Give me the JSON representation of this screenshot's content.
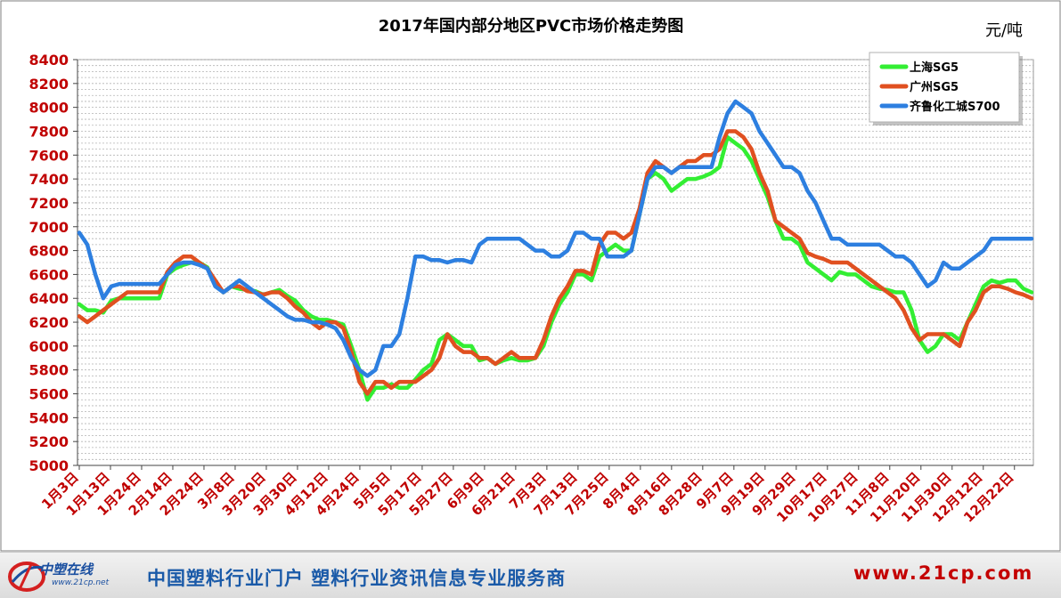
{
  "chart_data": {
    "type": "line",
    "title": "2017年国内部分地区PVC市场价格走势图",
    "unit_label": "元/吨",
    "ylim": [
      5000,
      8400
    ],
    "y_ticks": [
      5000,
      5200,
      5400,
      5600,
      5800,
      6000,
      6200,
      6400,
      6600,
      6800,
      7000,
      7200,
      7400,
      7600,
      7800,
      8000,
      8200,
      8400
    ],
    "grid": true,
    "legend_position": "top-right",
    "x_tick_labels": [
      "1月3日",
      "1月13日",
      "1月24日",
      "2月14日",
      "2月24日",
      "3月8日",
      "3月20日",
      "3月30日",
      "4月12日",
      "4月24日",
      "5月5日",
      "5月17日",
      "5月27日",
      "6月9日",
      "6月21日",
      "7月3日",
      "7月13日",
      "7月25日",
      "8月4日",
      "8月16日",
      "8月28日",
      "9月7日",
      "9月19日",
      "9月29日",
      "10月17日",
      "10月27日",
      "11月8日",
      "11月20日",
      "11月30日",
      "12月12日",
      "12月22日"
    ],
    "series": [
      {
        "name": "上海SG5",
        "color": "#33ee33",
        "values": [
          6350,
          6300,
          6300,
          6280,
          6380,
          6400,
          6400,
          6400,
          6400,
          6400,
          6400,
          6600,
          6650,
          6680,
          6700,
          6700,
          6660,
          6520,
          6450,
          6500,
          6480,
          6470,
          6460,
          6430,
          6450,
          6470,
          6420,
          6380,
          6300,
          6250,
          6220,
          6220,
          6200,
          6180,
          6000,
          5800,
          5550,
          5650,
          5650,
          5680,
          5650,
          5650,
          5720,
          5800,
          5850,
          6050,
          6100,
          6050,
          6000,
          6000,
          5880,
          5900,
          5850,
          5880,
          5900,
          5880,
          5880,
          5900,
          6000,
          6200,
          6350,
          6450,
          6600,
          6600,
          6550,
          6750,
          6800,
          6850,
          6800,
          6800,
          7100,
          7400,
          7450,
          7400,
          7300,
          7350,
          7400,
          7400,
          7420,
          7450,
          7500,
          7750,
          7700,
          7650,
          7550,
          7400,
          7250,
          7050,
          6900,
          6900,
          6850,
          6700,
          6650,
          6600,
          6550,
          6620,
          6600,
          6600,
          6550,
          6500,
          6480,
          6470,
          6450,
          6450,
          6300,
          6050,
          5950,
          6000,
          6100,
          6100,
          6050,
          6200,
          6350,
          6500,
          6550,
          6530,
          6550,
          6550,
          6480,
          6450
        ]
      },
      {
        "name": "广州SG5",
        "color": "#e05020",
        "values": [
          6250,
          6200,
          6250,
          6300,
          6350,
          6400,
          6450,
          6450,
          6450,
          6450,
          6450,
          6620,
          6700,
          6750,
          6750,
          6700,
          6650,
          6550,
          6450,
          6500,
          6500,
          6460,
          6450,
          6430,
          6450,
          6450,
          6400,
          6330,
          6280,
          6200,
          6150,
          6200,
          6200,
          6150,
          5950,
          5700,
          5600,
          5700,
          5700,
          5650,
          5700,
          5700,
          5700,
          5750,
          5800,
          5900,
          6100,
          6000,
          5950,
          5950,
          5900,
          5900,
          5850,
          5900,
          5950,
          5900,
          5900,
          5900,
          6050,
          6250,
          6400,
          6500,
          6630,
          6630,
          6600,
          6850,
          6950,
          6950,
          6900,
          6950,
          7150,
          7450,
          7550,
          7500,
          7450,
          7500,
          7550,
          7550,
          7600,
          7600,
          7650,
          7800,
          7800,
          7750,
          7650,
          7450,
          7300,
          7050,
          7000,
          6950,
          6900,
          6780,
          6750,
          6730,
          6700,
          6700,
          6700,
          6650,
          6600,
          6550,
          6500,
          6450,
          6400,
          6300,
          6150,
          6050,
          6100,
          6100,
          6100,
          6050,
          6000,
          6200,
          6300,
          6450,
          6500,
          6500,
          6480,
          6450,
          6430,
          6400
        ]
      },
      {
        "name": "齐鲁化工城S700",
        "color": "#2d7fe0",
        "values": [
          6950,
          6850,
          6600,
          6400,
          6500,
          6520,
          6520,
          6520,
          6520,
          6520,
          6520,
          6600,
          6680,
          6700,
          6700,
          6680,
          6650,
          6500,
          6450,
          6500,
          6550,
          6500,
          6450,
          6400,
          6350,
          6300,
          6250,
          6220,
          6220,
          6200,
          6200,
          6180,
          6150,
          6050,
          5900,
          5800,
          5750,
          5800,
          6000,
          6000,
          6100,
          6400,
          6750,
          6750,
          6720,
          6720,
          6700,
          6720,
          6720,
          6700,
          6850,
          6900,
          6900,
          6900,
          6900,
          6900,
          6850,
          6800,
          6800,
          6750,
          6750,
          6800,
          6950,
          6950,
          6900,
          6900,
          6750,
          6750,
          6750,
          6800,
          7100,
          7400,
          7500,
          7500,
          7450,
          7500,
          7500,
          7500,
          7500,
          7500,
          7750,
          7950,
          8050,
          8000,
          7950,
          7800,
          7700,
          7600,
          7500,
          7500,
          7450,
          7300,
          7200,
          7050,
          6900,
          6900,
          6850,
          6850,
          6850,
          6850,
          6850,
          6800,
          6750,
          6750,
          6700,
          6600,
          6500,
          6550,
          6700,
          6650,
          6650,
          6700,
          6750,
          6800,
          6900,
          6900,
          6900,
          6900,
          6900,
          6900
        ]
      }
    ]
  },
  "footer": {
    "logo_text": "中塑在线",
    "logo_url": "www.21cp.net",
    "slogan": "中国塑料行业门户  塑料行业资讯信息专业服务商",
    "website": "www.21cp.com"
  }
}
